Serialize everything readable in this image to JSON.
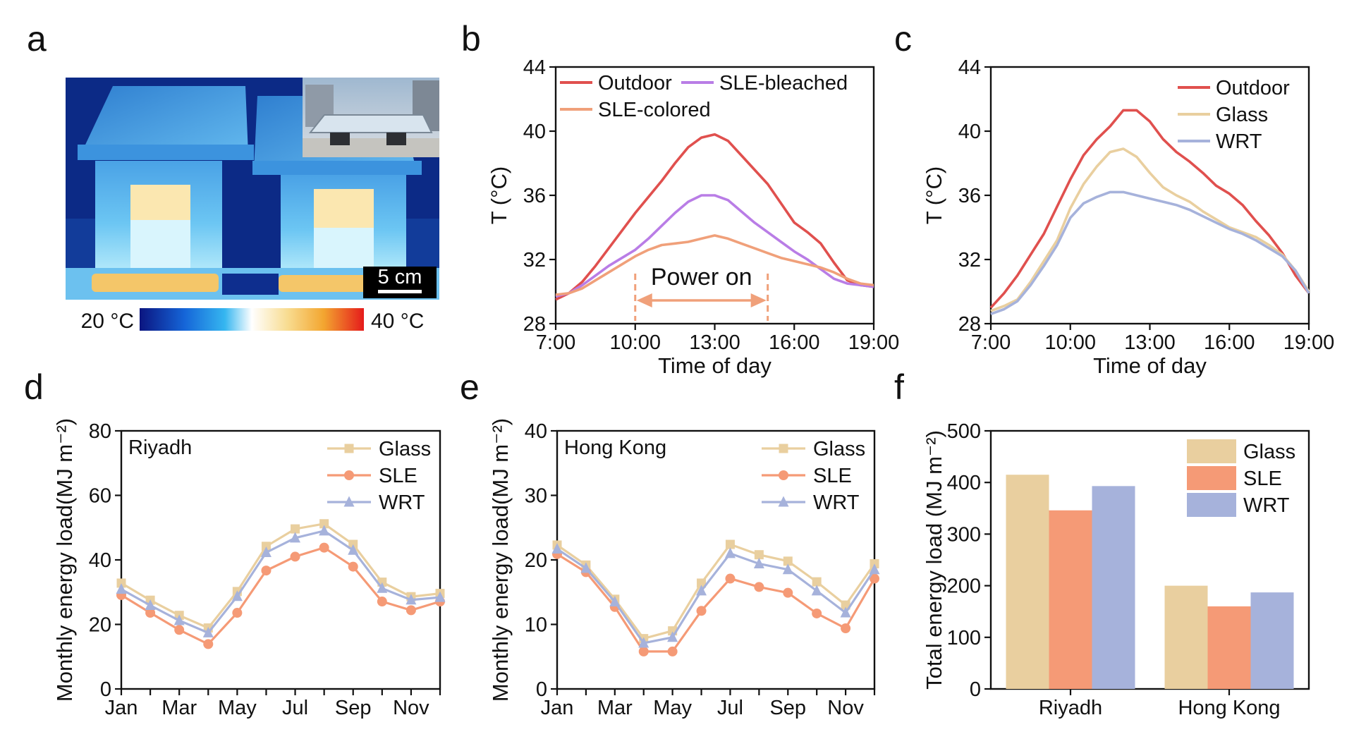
{
  "panels": {
    "a": {
      "letter": "a",
      "scale_bar": "5 cm",
      "colorbar_min": "20 °C",
      "colorbar_max": "40 °C"
    },
    "b": {
      "letter": "b"
    },
    "c": {
      "letter": "c"
    },
    "d": {
      "letter": "d",
      "city": "Riyadh"
    },
    "e": {
      "letter": "e",
      "city": "Hong Kong"
    },
    "f": {
      "letter": "f"
    }
  },
  "colors": {
    "outdoor": "#e0504e",
    "sle_bleached": "#b97de6",
    "sle_colored": "#f0a07a",
    "glass": "#e9cf9f",
    "sle": "#f59a76",
    "wrt": "#a6b2db"
  },
  "chart_data": [
    {
      "id": "b",
      "type": "line",
      "xlabel": "Time of day",
      "ylabel": "T (°C)",
      "xlim": [
        7,
        19
      ],
      "ylim": [
        28,
        44
      ],
      "xticks": [
        7,
        10,
        13,
        16,
        19
      ],
      "xticklabels": [
        "7:00",
        "10:00",
        "13:00",
        "16:00",
        "19:00"
      ],
      "yticks": [
        28,
        32,
        36,
        40,
        44
      ],
      "yticklabels": [
        "28",
        "32",
        "36",
        "40",
        "44"
      ],
      "legend_position": "top",
      "annotation": {
        "text": "Power on",
        "x_start": 10,
        "x_end": 15
      },
      "series": [
        {
          "name": "Outdoor",
          "color": "#e0504e",
          "x": [
            7,
            7.5,
            8,
            8.5,
            9,
            9.5,
            10,
            10.5,
            11,
            11.5,
            12,
            12.5,
            13,
            13.5,
            14,
            14.5,
            15,
            15.5,
            16,
            16.5,
            17,
            17.5,
            18,
            18.5,
            19
          ],
          "y": [
            29.5,
            29.9,
            30.6,
            31.6,
            32.7,
            33.8,
            34.9,
            35.9,
            36.9,
            38.0,
            39.0,
            39.6,
            39.8,
            39.4,
            38.5,
            37.6,
            36.7,
            35.5,
            34.3,
            33.7,
            33.0,
            31.8,
            30.7,
            30.4,
            30.3
          ]
        },
        {
          "name": "SLE-bleached",
          "color": "#b97de6",
          "x": [
            7,
            7.5,
            8,
            8.5,
            9,
            9.5,
            10,
            10.5,
            11,
            11.5,
            12,
            12.5,
            13,
            13.5,
            14,
            14.5,
            15,
            15.5,
            16,
            16.5,
            17,
            17.5,
            18,
            18.5,
            19
          ],
          "y": [
            29.7,
            29.9,
            30.4,
            31.0,
            31.6,
            32.1,
            32.6,
            33.3,
            34.1,
            34.9,
            35.6,
            36.0,
            36.0,
            35.7,
            35.0,
            34.3,
            33.7,
            33.1,
            32.5,
            32.0,
            31.4,
            30.8,
            30.5,
            30.4,
            30.3
          ]
        },
        {
          "name": "SLE-colored",
          "color": "#f0a07a",
          "x": [
            7,
            7.5,
            8,
            8.5,
            9,
            9.5,
            10,
            10.5,
            11,
            11.5,
            12,
            12.5,
            13,
            13.5,
            14,
            14.5,
            15,
            15.5,
            16,
            16.5,
            17,
            17.5,
            18,
            18.5,
            19
          ],
          "y": [
            29.8,
            29.9,
            30.2,
            30.7,
            31.2,
            31.7,
            32.2,
            32.6,
            32.9,
            33.0,
            33.1,
            33.3,
            33.5,
            33.3,
            33.0,
            32.7,
            32.4,
            32.1,
            31.9,
            31.7,
            31.5,
            31.2,
            30.8,
            30.5,
            30.4
          ]
        }
      ]
    },
    {
      "id": "c",
      "type": "line",
      "xlabel": "Time of day",
      "ylabel": "T (°C)",
      "xlim": [
        7,
        19
      ],
      "ylim": [
        28,
        44
      ],
      "xticks": [
        7,
        10,
        13,
        16,
        19
      ],
      "xticklabels": [
        "7:00",
        "10:00",
        "13:00",
        "16:00",
        "19:00"
      ],
      "yticks": [
        28,
        32,
        36,
        40,
        44
      ],
      "yticklabels": [
        "28",
        "32",
        "36",
        "40",
        "44"
      ],
      "legend_position": "top-right",
      "series": [
        {
          "name": "Outdoor",
          "color": "#e0504e",
          "x": [
            7,
            7.5,
            8,
            8.5,
            9,
            9.5,
            10,
            10.5,
            11,
            11.5,
            12,
            12.5,
            13,
            13.5,
            14,
            14.5,
            15,
            15.5,
            16,
            16.5,
            17,
            17.5,
            18,
            18.5,
            19
          ],
          "y": [
            29.0,
            29.9,
            31.0,
            32.3,
            33.6,
            35.3,
            37.0,
            38.5,
            39.5,
            40.3,
            41.3,
            41.3,
            40.6,
            39.5,
            38.7,
            38.1,
            37.4,
            36.6,
            36.1,
            35.4,
            34.4,
            33.5,
            32.4,
            31.0,
            29.9
          ]
        },
        {
          "name": "Glass",
          "color": "#e9cf9f",
          "x": [
            7,
            7.5,
            8,
            8.5,
            9,
            9.5,
            10,
            10.5,
            11,
            11.5,
            12,
            12.5,
            13,
            13.5,
            14,
            14.5,
            15,
            15.5,
            16,
            16.5,
            17,
            17.5,
            18,
            18.5,
            19
          ],
          "y": [
            28.8,
            29.1,
            29.5,
            30.6,
            31.9,
            33.2,
            35.2,
            36.7,
            37.8,
            38.7,
            38.9,
            38.4,
            37.4,
            36.5,
            36.0,
            35.6,
            35.0,
            34.5,
            34.0,
            33.7,
            33.4,
            32.9,
            32.3,
            31.3,
            30.0
          ]
        },
        {
          "name": "WRT",
          "color": "#a6b2db",
          "x": [
            7,
            7.5,
            8,
            8.5,
            9,
            9.5,
            10,
            10.5,
            11,
            11.5,
            12,
            12.5,
            13,
            13.5,
            14,
            14.5,
            15,
            15.5,
            16,
            16.5,
            17,
            17.5,
            18,
            18.5,
            19
          ],
          "y": [
            28.6,
            28.9,
            29.4,
            30.4,
            31.6,
            32.9,
            34.6,
            35.5,
            35.9,
            36.2,
            36.2,
            36.0,
            35.8,
            35.6,
            35.4,
            35.1,
            34.7,
            34.3,
            33.9,
            33.6,
            33.2,
            32.7,
            32.2,
            31.3,
            29.9
          ]
        }
      ]
    },
    {
      "id": "d",
      "type": "line",
      "title": "Riyadh",
      "xlabel": "",
      "ylabel": "Monthly energy load(MJ m⁻²)",
      "x": [
        1,
        2,
        3,
        4,
        5,
        6,
        7,
        8,
        9,
        10,
        11,
        12
      ],
      "xlim": [
        1,
        12
      ],
      "ylim": [
        0,
        80
      ],
      "xticks": [
        1,
        3,
        5,
        7,
        9,
        11
      ],
      "xticklabels": [
        "Jan",
        "Mar",
        "May",
        "Jul",
        "Sep",
        "Nov"
      ],
      "yticks": [
        0,
        20,
        40,
        60,
        80
      ],
      "yticklabels": [
        "0",
        "20",
        "40",
        "60",
        "80"
      ],
      "legend_position": "top-right",
      "series": [
        {
          "name": "Glass",
          "marker": "square",
          "color": "#e9cf9f",
          "values": [
            32.8,
            27.5,
            22.8,
            18.9,
            30.2,
            44.2,
            49.6,
            51.2,
            44.8,
            33.1,
            28.6,
            29.6
          ]
        },
        {
          "name": "SLE",
          "marker": "circle",
          "color": "#f59a76",
          "values": [
            29.1,
            23.6,
            18.3,
            13.9,
            23.6,
            36.7,
            41.0,
            43.8,
            37.9,
            27.1,
            24.4,
            27.1
          ]
        },
        {
          "name": "WRT",
          "marker": "triangle",
          "color": "#a6b2db",
          "values": [
            30.9,
            25.9,
            21.2,
            17.4,
            28.7,
            42.3,
            46.8,
            49.0,
            43.0,
            31.2,
            27.6,
            28.4
          ]
        }
      ]
    },
    {
      "id": "e",
      "type": "line",
      "title": "Hong Kong",
      "xlabel": "",
      "ylabel": "Monthly energy load(MJ m⁻²)",
      "x": [
        1,
        2,
        3,
        4,
        5,
        6,
        7,
        8,
        9,
        10,
        11,
        12
      ],
      "xlim": [
        1,
        12
      ],
      "ylim": [
        0,
        40
      ],
      "xticks": [
        1,
        3,
        5,
        7,
        9,
        11
      ],
      "xticklabels": [
        "Jan",
        "Mar",
        "May",
        "Jul",
        "Sep",
        "Nov"
      ],
      "yticks": [
        0,
        10,
        20,
        30,
        40
      ],
      "yticklabels": [
        "0",
        "10",
        "20",
        "30",
        "40"
      ],
      "legend_position": "top-right",
      "series": [
        {
          "name": "Glass",
          "marker": "square",
          "color": "#e9cf9f",
          "values": [
            22.3,
            19.2,
            13.9,
            7.8,
            9.0,
            16.4,
            22.4,
            20.8,
            19.8,
            16.6,
            13.0,
            19.4
          ]
        },
        {
          "name": "SLE",
          "marker": "circle",
          "color": "#f59a76",
          "values": [
            20.9,
            18.1,
            12.7,
            5.8,
            5.8,
            12.1,
            17.1,
            15.8,
            14.9,
            11.7,
            9.4,
            17.1
          ]
        },
        {
          "name": "WRT",
          "marker": "triangle",
          "color": "#a6b2db",
          "values": [
            21.7,
            18.7,
            13.5,
            7.1,
            8.0,
            15.2,
            21.0,
            19.4,
            18.5,
            15.2,
            11.8,
            18.5
          ]
        }
      ]
    },
    {
      "id": "f",
      "type": "bar",
      "xlabel": "",
      "ylabel": "Total energy load (MJ m⁻²)",
      "categories": [
        "Riyadh",
        "Hong Kong"
      ],
      "ylim": [
        0,
        500
      ],
      "yticks": [
        0,
        100,
        200,
        300,
        400,
        500
      ],
      "yticklabels": [
        "0",
        "100",
        "200",
        "300",
        "400",
        "500"
      ],
      "legend_position": "top-right",
      "series": [
        {
          "name": "Glass",
          "color": "#e9cf9f",
          "values": [
            415,
            200
          ]
        },
        {
          "name": "SLE",
          "color": "#f59a76",
          "values": [
            346,
            160
          ]
        },
        {
          "name": "WRT",
          "color": "#a6b2db",
          "values": [
            393,
            187
          ]
        }
      ]
    }
  ]
}
